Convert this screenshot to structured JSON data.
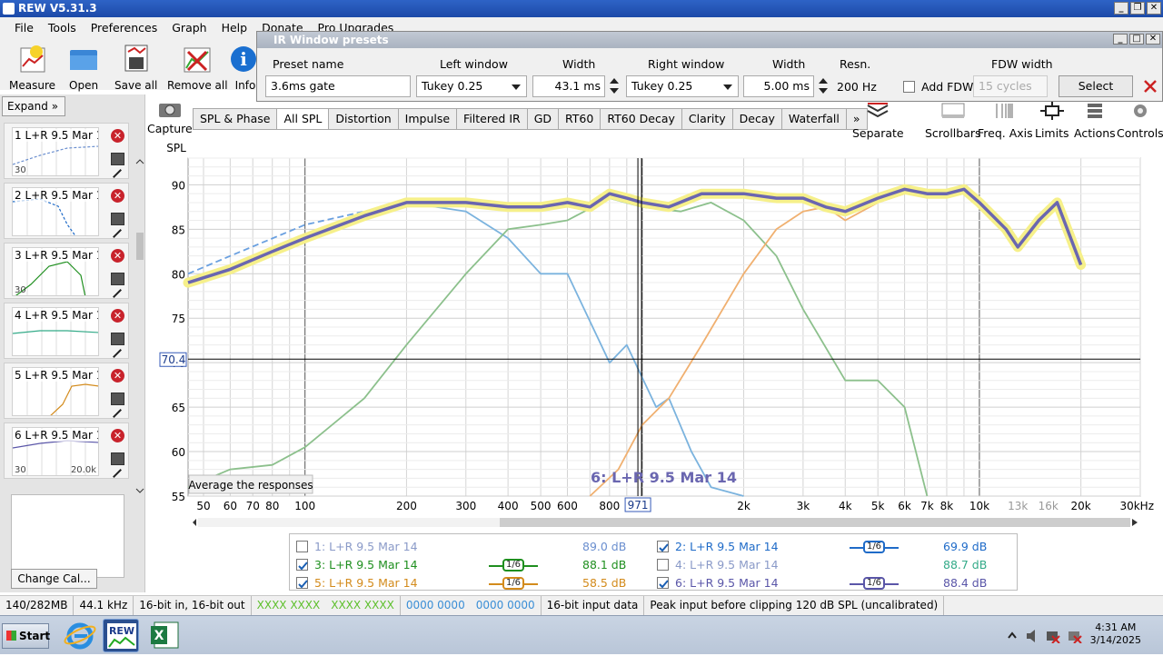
{
  "app": {
    "title": "REW V5.31.3"
  },
  "menu": [
    "File",
    "Tools",
    "Preferences",
    "Graph",
    "Help",
    "Donate",
    "Pro Upgrades"
  ],
  "toolbar": {
    "measure": "Measure",
    "open": "Open",
    "save_all": "Save all",
    "remove_all": "Remove all",
    "info": "Info"
  },
  "sidebar": {
    "expand": "Expand",
    "change_cal": "Change Cal...",
    "items": [
      {
        "label": "1 L+R 9.5 Mar 14",
        "axis_left": "30",
        "axis_right": ""
      },
      {
        "label": "2 L+R 9.5 Mar 14",
        "axis_left": "",
        "axis_right": ""
      },
      {
        "label": "3 L+R 9.5 Mar 14",
        "axis_left": "30",
        "axis_right": ""
      },
      {
        "label": "4 L+R 9.5 Mar 14",
        "axis_left": "",
        "axis_right": ""
      },
      {
        "label": "5 L+R 9.5 Mar 14",
        "axis_left": "",
        "axis_right": ""
      },
      {
        "label": "6 L+R 9.5 Mar 14",
        "axis_left": "30",
        "axis_right": "20.0k"
      }
    ]
  },
  "ir_window": {
    "title": "IR Window presets",
    "labels": {
      "preset": "Preset name",
      "left": "Left window",
      "width1": "Width",
      "right": "Right window",
      "width2": "Width",
      "resn": "Resn.",
      "fdw": "FDW width"
    },
    "preset_value": "3.6ms gate",
    "left_window": "Tukey 0.25",
    "left_width": "43.1 ms",
    "right_window": "Tukey 0.25",
    "right_width": "5.00 ms",
    "resolution": "200 Hz",
    "add_fdw": "Add FDW",
    "fdw_value": "15 cycles",
    "select": "Select"
  },
  "capture": "Capture",
  "tabs": [
    "SPL & Phase",
    "All SPL",
    "Distortion",
    "Impulse",
    "Filtered IR",
    "GD",
    "RT60",
    "RT60 Decay",
    "Clarity",
    "Decay",
    "Waterfall",
    "»"
  ],
  "active_tab": "All SPL",
  "graph_tools": [
    "Separate",
    "Scrollbars",
    "Freq. Axis",
    "Limits",
    "Actions",
    "Controls"
  ],
  "graph": {
    "ylabel": "SPL",
    "yticks": [
      "90",
      "85",
      "80",
      "75",
      "70",
      "65",
      "60",
      "55"
    ],
    "xticks": [
      "50",
      "60",
      "70",
      "80",
      "100",
      "200",
      "300",
      "400",
      "500",
      "600",
      "800",
      "2k",
      "3k",
      "4k",
      "5k",
      "6k",
      "7k",
      "8k",
      "10k",
      "13k",
      "16k",
      "20k",
      "30kHz"
    ],
    "cursor_y": "70.4",
    "cursor_x": "971",
    "hover_label": "6: L+R 9.5 Mar 14",
    "average_button": "Average the responses"
  },
  "chart_data": {
    "type": "line",
    "xlabel": "",
    "ylabel": "SPL",
    "xscale": "log",
    "xlim": [
      45,
      30000
    ],
    "ylim": [
      55,
      93
    ],
    "series": [
      {
        "name": "1: L+R 9.5 Mar 14",
        "color": "#6aa0e0",
        "style": "dashed",
        "x": [
          45,
          60,
          100,
          150,
          200
        ],
        "y": [
          80,
          82,
          85.5,
          87,
          88
        ]
      },
      {
        "name": "2: L+R 9.5 Mar 14",
        "color": "#7bb3de",
        "x": [
          200,
          300,
          400,
          500,
          600,
          800,
          900,
          1100,
          1200,
          1400,
          1600,
          2000
        ],
        "y": [
          88,
          87,
          84,
          80,
          80,
          70,
          72,
          65,
          66,
          60,
          56,
          55
        ]
      },
      {
        "name": "3: L+R 9.5 Mar 14",
        "color": "#8cc08c",
        "x": [
          45,
          60,
          80,
          100,
          150,
          200,
          300,
          400,
          500,
          600,
          800,
          1000,
          1300,
          1600,
          2000,
          2500,
          3000,
          4000,
          5000,
          6000,
          7000
        ],
        "y": [
          56,
          58,
          58.5,
          60.5,
          66,
          72,
          80,
          85,
          85.5,
          86,
          88.5,
          87.5,
          87,
          88,
          86,
          82,
          76,
          68,
          68,
          65,
          55
        ]
      },
      {
        "name": "5: L+R 9.5 Mar 14",
        "color": "#f0b070",
        "x": [
          700,
          850,
          1000,
          1200,
          1500,
          2000,
          2500,
          3000,
          3500,
          4000,
          5000,
          6000
        ],
        "y": [
          55,
          58,
          63,
          66,
          72,
          80,
          85,
          87,
          87.5,
          86,
          88,
          89
        ]
      },
      {
        "name": "6: L+R 9.5 Mar 14",
        "color": "#6a66b0",
        "x": [
          45,
          60,
          80,
          100,
          150,
          200,
          300,
          400,
          500,
          600,
          700,
          800,
          900,
          1000,
          1200,
          1500,
          2000,
          2500,
          3000,
          3500,
          4000,
          5000,
          6000,
          7000,
          8000,
          9000,
          10000,
          12000,
          13000,
          15000,
          17000,
          20000
        ],
        "y": [
          79,
          80.5,
          82.5,
          84,
          86.5,
          88,
          88,
          87.5,
          87.5,
          88,
          87.5,
          89,
          88.5,
          88,
          87.5,
          89,
          89,
          88.5,
          88.5,
          87.5,
          87,
          88.5,
          89.5,
          89,
          89,
          89.5,
          88,
          85,
          83,
          86,
          88,
          81
        ]
      }
    ]
  },
  "legend": [
    {
      "id": "1: L+R 9.5 Mar 14",
      "checked": false,
      "smooth": "",
      "value": "89.0 dB",
      "color": "#6b8fcf"
    },
    {
      "id": "2: L+R 9.5 Mar 14",
      "checked": true,
      "smooth": "1/6",
      "value": "69.9 dB",
      "color": "#1f6bc8"
    },
    {
      "id": "3: L+R 9.5 Mar 14",
      "checked": true,
      "smooth": "1/6",
      "value": "88.1 dB",
      "color": "#1f8f1f"
    },
    {
      "id": "4: L+R 9.5 Mar 14",
      "checked": false,
      "smooth": "",
      "value": "88.7 dB",
      "color": "#33aa88"
    },
    {
      "id": "5: L+R 9.5 Mar 14",
      "checked": true,
      "smooth": "1/6",
      "value": "58.5 dB",
      "color": "#d38b1c"
    },
    {
      "id": "6: L+R 9.5 Mar 14",
      "checked": true,
      "smooth": "1/6",
      "value": "88.4 dB",
      "color": "#5a56a8"
    }
  ],
  "status": [
    "140/282MB",
    "44.1 kHz",
    "16-bit in, 16-bit out",
    "XXXX XXXX",
    "XXXX XXXX",
    "0000 0000",
    "0000 0000",
    "16-bit input data",
    "Peak input before clipping 120 dB SPL (uncalibrated)"
  ],
  "taskbar": {
    "start": "Start",
    "time": "4:31 AM",
    "date": "3/14/2025"
  }
}
